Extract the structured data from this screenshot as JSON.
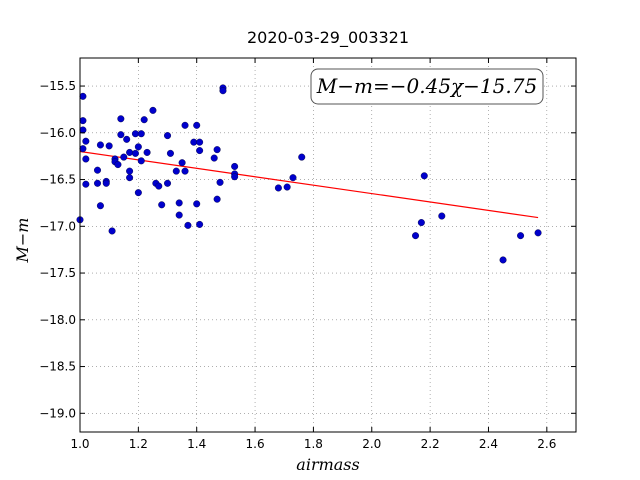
{
  "chart_data": {
    "type": "scatter",
    "title": "2020-03-29_003321",
    "xlabel": "airmass",
    "ylabel": "M−m",
    "annotation": "M−m=−0.45χ−15.75",
    "xlim": [
      1.0,
      2.7
    ],
    "ylim": [
      -19.2,
      -15.2
    ],
    "y_inverted": true,
    "grid": true,
    "x_ticks": [
      1.0,
      1.2,
      1.4,
      1.6,
      1.8,
      2.0,
      2.2,
      2.4,
      2.6
    ],
    "x_tick_labels": [
      "1.0",
      "1.2",
      "1.4",
      "1.6",
      "1.8",
      "2.0",
      "2.2",
      "2.4",
      "2.6"
    ],
    "y_ticks": [
      -15.5,
      -16.0,
      -16.5,
      -17.0,
      -17.5,
      -18.0,
      -18.5,
      -19.0
    ],
    "y_tick_labels": [
      "−15.5",
      "−16.0",
      "−16.5",
      "−17.0",
      "−17.5",
      "−18.0",
      "−18.5",
      "−19.0"
    ],
    "points_color": "#0000cc",
    "fit_color": "#ff0000",
    "fit": {
      "slope": -0.45,
      "intercept": -15.75,
      "x_range": [
        1.0,
        2.57
      ]
    },
    "points": [
      [
        1.0,
        -16.93
      ],
      [
        1.01,
        -15.61
      ],
      [
        1.01,
        -15.87
      ],
      [
        1.01,
        -15.97
      ],
      [
        1.01,
        -16.17
      ],
      [
        1.02,
        -16.09
      ],
      [
        1.02,
        -16.28
      ],
      [
        1.02,
        -16.55
      ],
      [
        1.06,
        -16.4
      ],
      [
        1.06,
        -16.54
      ],
      [
        1.07,
        -16.13
      ],
      [
        1.07,
        -16.78
      ],
      [
        1.09,
        -16.52
      ],
      [
        1.09,
        -16.54
      ],
      [
        1.1,
        -16.14
      ],
      [
        1.11,
        -17.05
      ],
      [
        1.12,
        -16.28
      ],
      [
        1.12,
        -16.31
      ],
      [
        1.13,
        -16.34
      ],
      [
        1.14,
        -15.85
      ],
      [
        1.14,
        -16.02
      ],
      [
        1.15,
        -16.26
      ],
      [
        1.16,
        -16.07
      ],
      [
        1.17,
        -16.21
      ],
      [
        1.17,
        -16.41
      ],
      [
        1.17,
        -16.48
      ],
      [
        1.19,
        -16.22
      ],
      [
        1.19,
        -16.01
      ],
      [
        1.2,
        -16.64
      ],
      [
        1.2,
        -16.15
      ],
      [
        1.21,
        -16.3
      ],
      [
        1.21,
        -16.01
      ],
      [
        1.22,
        -15.86
      ],
      [
        1.23,
        -16.21
      ],
      [
        1.25,
        -15.76
      ],
      [
        1.26,
        -16.54
      ],
      [
        1.27,
        -16.57
      ],
      [
        1.28,
        -16.77
      ],
      [
        1.3,
        -16.03
      ],
      [
        1.3,
        -16.54
      ],
      [
        1.31,
        -16.22
      ],
      [
        1.33,
        -16.41
      ],
      [
        1.34,
        -16.88
      ],
      [
        1.34,
        -16.75
      ],
      [
        1.35,
        -16.32
      ],
      [
        1.36,
        -15.92
      ],
      [
        1.36,
        -16.41
      ],
      [
        1.37,
        -16.99
      ],
      [
        1.39,
        -16.1
      ],
      [
        1.4,
        -16.76
      ],
      [
        1.4,
        -15.92
      ],
      [
        1.41,
        -16.98
      ],
      [
        1.41,
        -16.1
      ],
      [
        1.41,
        -16.19
      ],
      [
        1.46,
        -16.27
      ],
      [
        1.47,
        -16.71
      ],
      [
        1.47,
        -16.18
      ],
      [
        1.48,
        -16.53
      ],
      [
        1.49,
        -15.52
      ],
      [
        1.49,
        -15.55
      ],
      [
        1.53,
        -16.36
      ],
      [
        1.53,
        -16.44
      ],
      [
        1.53,
        -16.47
      ],
      [
        1.68,
        -16.59
      ],
      [
        1.71,
        -16.58
      ],
      [
        1.73,
        -16.48
      ],
      [
        1.76,
        -16.26
      ],
      [
        2.15,
        -17.1
      ],
      [
        2.17,
        -16.96
      ],
      [
        2.18,
        -16.46
      ],
      [
        2.24,
        -16.89
      ],
      [
        2.45,
        -17.36
      ],
      [
        2.51,
        -17.1
      ],
      [
        2.57,
        -17.07
      ]
    ]
  }
}
